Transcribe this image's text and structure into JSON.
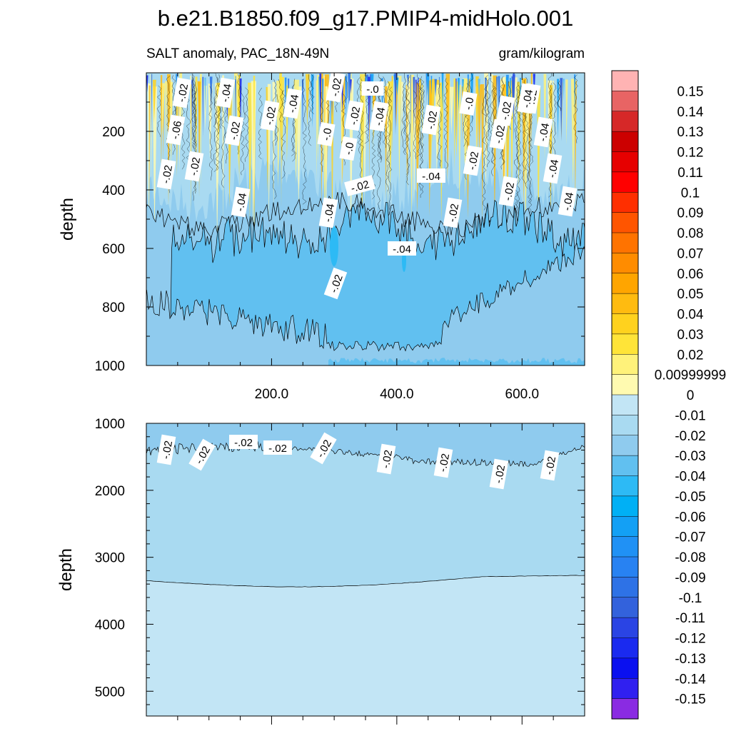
{
  "chart_data": {
    "type": "heatmap",
    "title": "b.e21.B1850.f09_g17.PMIP4-midHolo.001",
    "subtitle_left": "SALT anomaly, PAC_18N-49N",
    "subtitle_right": "gram/kilogram",
    "panels": [
      {
        "name": "upper",
        "ylabel": "depth",
        "ylim": [
          0,
          1000
        ],
        "xlim": [
          0,
          700
        ],
        "yticks": [
          "200",
          "400",
          "600",
          "800",
          "1000"
        ],
        "yticks_values": [
          200,
          400,
          600,
          800,
          1000
        ],
        "xticks": [
          "200.0",
          "400.0",
          "600.0"
        ],
        "xticks_values": [
          200,
          400,
          600
        ],
        "contour_labels": [
          "-.02",
          "-.04",
          "-.04",
          "-.02",
          "-.0",
          "-.02",
          "-.02",
          "-.04",
          "-.02",
          "-.0",
          "-.02",
          "-.02",
          "-.06",
          "-.02",
          "-.0",
          "-.0",
          "-.02",
          "-.04",
          "-.02",
          "-.02",
          "-.02",
          "-.04",
          "-.02",
          "-.04",
          "-.02",
          "-.04",
          "-.04",
          "-.02",
          "-.04",
          "-.04",
          "-.02",
          "-.04"
        ]
      },
      {
        "name": "lower",
        "ylabel": "depth",
        "ylim": [
          1000,
          5370
        ],
        "xlim": [
          0,
          700
        ],
        "yticks": [
          "1000",
          "2000",
          "3000",
          "4000",
          "5000"
        ],
        "yticks_values": [
          1000,
          2000,
          3000,
          4000,
          5000
        ],
        "contour_labels": [
          "-.02",
          "-.02",
          "-.02",
          "-.02",
          "-.02",
          "-.02",
          "-.02",
          "-.02",
          "-.02"
        ]
      }
    ],
    "colorbar": {
      "labels": [
        "0.15",
        "0.14",
        "0.13",
        "0.12",
        "0.11",
        "0.1",
        "0.09",
        "0.08",
        "0.07",
        "0.06",
        "0.05",
        "0.04",
        "0.03",
        "0.02",
        "0.00999999",
        "0",
        "-0.01",
        "-0.02",
        "-0.03",
        "-0.04",
        "-0.05",
        "-0.06",
        "-0.07",
        "-0.08",
        "-0.09",
        "-0.1",
        "-0.11",
        "-0.12",
        "-0.13",
        "-0.14",
        "-0.15"
      ],
      "colors": [
        "#FFB3B3",
        "#E86464",
        "#D62828",
        "#CC0000",
        "#E60000",
        "#FF0000",
        "#FF2F00",
        "#FF5500",
        "#FF7300",
        "#FF8C00",
        "#FFA500",
        "#FFBB10",
        "#FFD21E",
        "#FFE438",
        "#FFF27A",
        "#FFFAB0",
        "#C2E5F5",
        "#A9DAF1",
        "#8FCBEE",
        "#61C0F0",
        "#2DBAF5",
        "#00B0F5",
        "#13A0F5",
        "#2091F5",
        "#2882F2",
        "#2E72E6",
        "#3362DC",
        "#2A44E4",
        "#1A2AF0",
        "#0A10F0",
        "#3020F0",
        "#8A2BE2"
      ]
    }
  }
}
